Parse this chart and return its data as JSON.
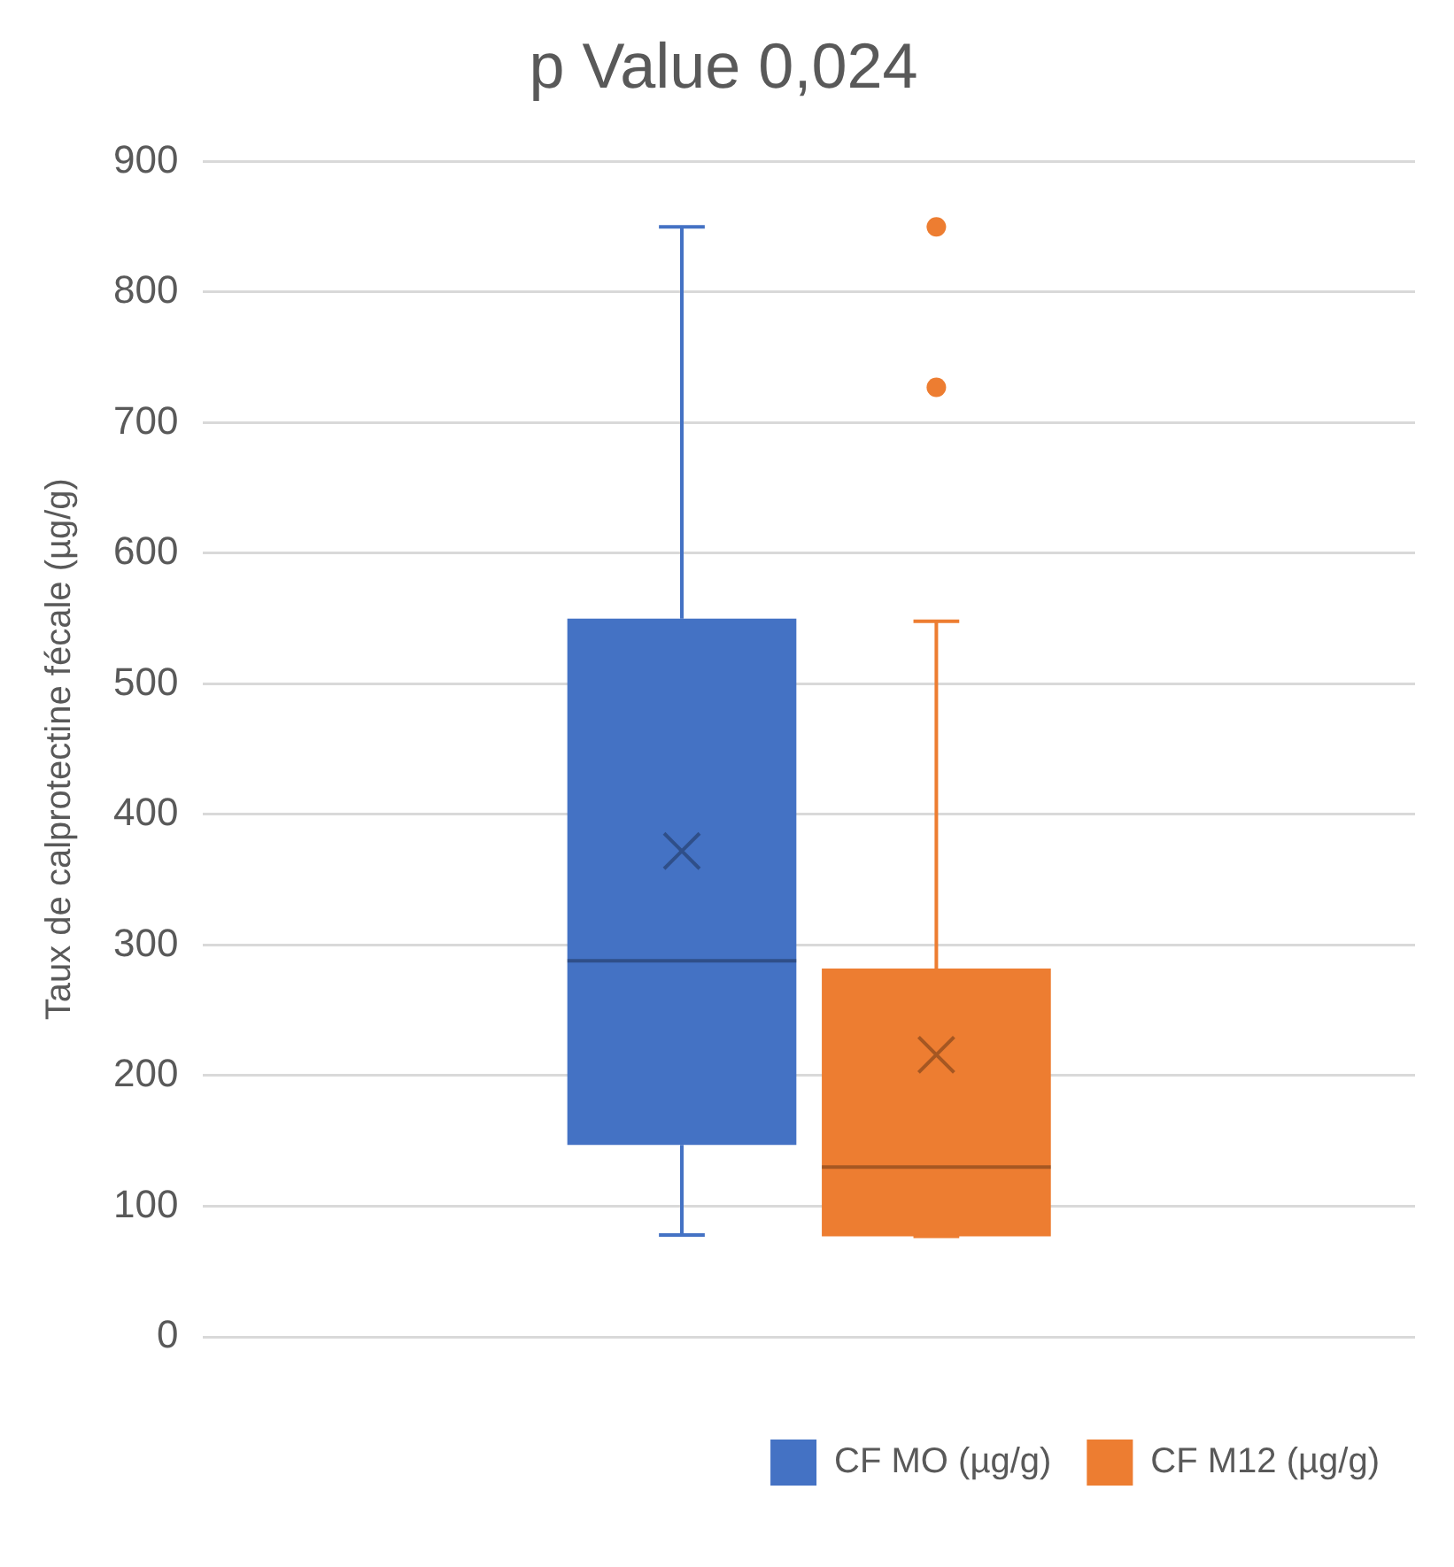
{
  "chart_data": {
    "type": "box",
    "title": "p Value 0,024",
    "ylabel": "Taux de calprotectine fécale (µg/g)",
    "categories": [
      null
    ],
    "series": [
      {
        "name": "CF MO (µg/g)",
        "color": "#4472c4",
        "boxes": [
          {
            "low": 78,
            "q1": 147,
            "median": 288,
            "q3": 550,
            "high": 850,
            "mean": 372
          }
        ]
      },
      {
        "name": "CF M12 (µg/g)",
        "color": "#ed7d31",
        "boxes": [
          {
            "low": 77,
            "q1": 77,
            "median": 130,
            "q3": 282,
            "high": 548,
            "mean": 216,
            "outliers": [
              850,
              727
            ]
          }
        ]
      }
    ],
    "ylim": [
      0,
      900
    ],
    "yticks": [
      0,
      100,
      200,
      300,
      400,
      500,
      600,
      700,
      800,
      900
    ],
    "grid": "y",
    "legend": "bottom"
  }
}
